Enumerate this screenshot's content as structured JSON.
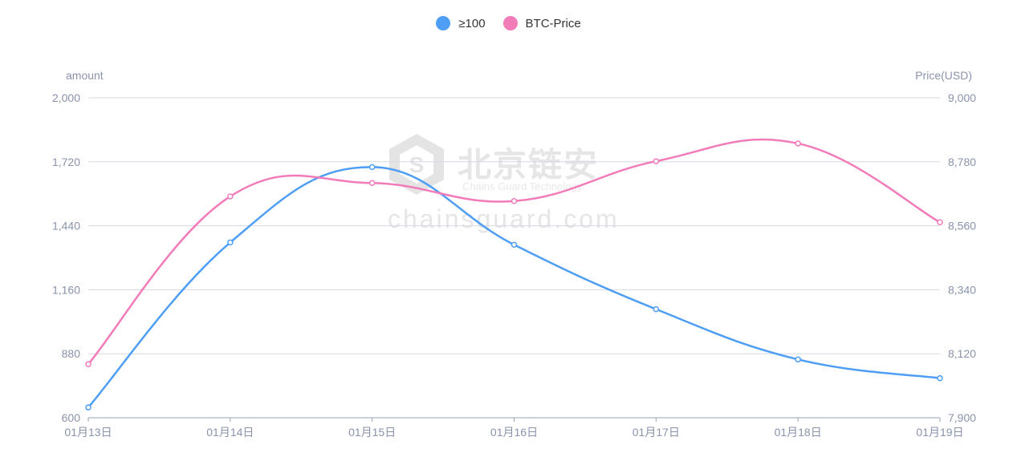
{
  "chart_data": {
    "type": "line",
    "categories": [
      "01月13日",
      "01月14日",
      "01月15日",
      "01月16日",
      "01月17日",
      "01月18日",
      "01月19日"
    ],
    "series": [
      {
        "name": "≥100",
        "axis": "left",
        "color": "#4e9ef5",
        "values": [
          645,
          1367,
          1697,
          1357,
          1075,
          855,
          773
        ]
      },
      {
        "name": "BTC-Price",
        "axis": "right",
        "color": "#f27bb9",
        "values": [
          8084,
          8661,
          8707,
          8645,
          8782,
          8843,
          8572
        ]
      }
    ],
    "y_left": {
      "label": "amount",
      "min": 600,
      "max": 2000,
      "ticks": [
        "600",
        "880",
        "1,160",
        "1,440",
        "1,720",
        "2,000"
      ]
    },
    "y_right": {
      "label": "Price(USD)",
      "min": 7900,
      "max": 9000,
      "ticks": [
        "7,900",
        "8,120",
        "8,340",
        "8,560",
        "8,780",
        "9,000"
      ]
    },
    "grid": true,
    "legend_position": "top-center"
  },
  "watermark": {
    "brand": "北京链安",
    "brand_en": "Chains Guard Technology",
    "domain": "chainsguard.com"
  }
}
